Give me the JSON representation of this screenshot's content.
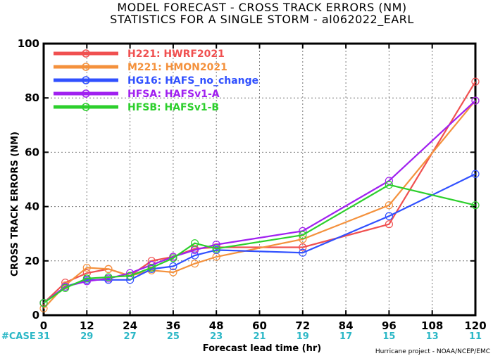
{
  "title_line1": "MODEL FORECAST - CROSS TRACK ERRORS (NM)",
  "title_line2": "STATISTICS FOR A SINGLE STORM - al062022_EARL",
  "case_label": "#CASE",
  "credit": "Hurricane project - NOAA/NCEP/EMC",
  "chart_data": {
    "type": "line",
    "xlabel": "Forecast lead time (hr)",
    "ylabel": "CROSS TRACK ERRORS (NM)",
    "xlim": [
      0,
      120
    ],
    "ylim": [
      0,
      100
    ],
    "xticks": [
      0,
      12,
      24,
      36,
      48,
      60,
      72,
      84,
      96,
      108,
      120
    ],
    "yticks": [
      0,
      20,
      40,
      60,
      80,
      100
    ],
    "grid": "dotted",
    "legend_position": "top-left",
    "case_counts": [
      {
        "x": 0,
        "n": "31"
      },
      {
        "x": 12,
        "n": "29"
      },
      {
        "x": 24,
        "n": "27"
      },
      {
        "x": 36,
        "n": "25"
      },
      {
        "x": 48,
        "n": "23"
      },
      {
        "x": 60,
        "n": "21"
      },
      {
        "x": 72,
        "n": "19"
      },
      {
        "x": 84,
        "n": "17"
      },
      {
        "x": 96,
        "n": "15"
      },
      {
        "x": 108,
        "n": "13"
      },
      {
        "x": 120,
        "n": "11"
      }
    ],
    "series": [
      {
        "code": "H221",
        "name": "HWRF2021",
        "color": "#f05050",
        "points": [
          [
            0,
            4.5
          ],
          [
            6,
            12
          ],
          [
            12,
            15.5
          ],
          [
            18,
            17
          ],
          [
            24,
            14.5
          ],
          [
            30,
            20
          ],
          [
            36,
            21.5
          ],
          [
            42,
            24.5
          ],
          [
            48,
            25
          ],
          [
            72,
            25
          ],
          [
            96,
            33.5
          ],
          [
            120,
            86
          ]
        ]
      },
      {
        "code": "M221",
        "name": "HMON2021",
        "color": "#f4913c",
        "points": [
          [
            0,
            2.5
          ],
          [
            6,
            11
          ],
          [
            12,
            17.5
          ],
          [
            18,
            17
          ],
          [
            24,
            14.5
          ],
          [
            30,
            16.5
          ],
          [
            36,
            15.8
          ],
          [
            42,
            19
          ],
          [
            48,
            21.5
          ],
          [
            72,
            28
          ],
          [
            96,
            40.5
          ],
          [
            120,
            79
          ]
        ]
      },
      {
        "code": "HG16",
        "name": "HAFS_no_change",
        "color": "#3050ff",
        "points": [
          [
            0,
            4.5
          ],
          [
            6,
            10.5
          ],
          [
            12,
            13
          ],
          [
            18,
            13
          ],
          [
            24,
            13
          ],
          [
            30,
            17
          ],
          [
            36,
            18
          ],
          [
            42,
            22
          ],
          [
            48,
            24
          ],
          [
            72,
            23
          ],
          [
            96,
            36.5
          ],
          [
            120,
            52
          ]
        ]
      },
      {
        "code": "HFSA",
        "name": "HAFSv1-A",
        "color": "#a020f0",
        "points": [
          [
            0,
            4.5
          ],
          [
            6,
            10.5
          ],
          [
            12,
            12.5
          ],
          [
            18,
            13.5
          ],
          [
            24,
            15.5
          ],
          [
            30,
            18.5
          ],
          [
            36,
            21.5
          ],
          [
            42,
            24
          ],
          [
            48,
            26
          ],
          [
            72,
            31
          ],
          [
            96,
            49.5
          ],
          [
            120,
            79
          ]
        ]
      },
      {
        "code": "HFSB",
        "name": "HAFSv1-B",
        "color": "#2ccf2c",
        "points": [
          [
            0,
            4.5
          ],
          [
            6,
            10
          ],
          [
            12,
            13.5
          ],
          [
            18,
            14
          ],
          [
            24,
            14.5
          ],
          [
            30,
            17.5
          ],
          [
            36,
            21
          ],
          [
            42,
            26.5
          ],
          [
            48,
            24.5
          ],
          [
            72,
            29.5
          ],
          [
            96,
            48
          ],
          [
            120,
            40.5
          ]
        ]
      }
    ]
  }
}
